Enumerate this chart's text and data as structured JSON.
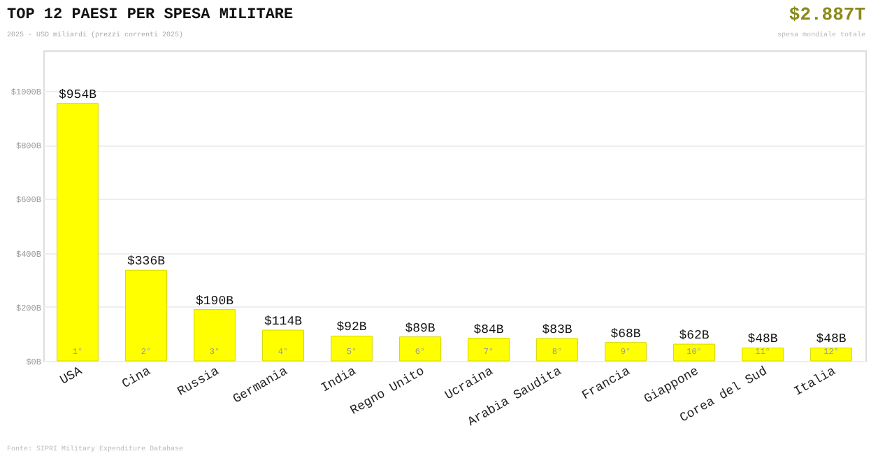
{
  "chart_data": {
    "type": "bar",
    "title": "TOP 12 PAESI PER SPESA MILITARE",
    "subtitle": "2025  ·  USD miliardi (prezzi correnti 2025)",
    "categories": [
      "USA",
      "Cina",
      "Russia",
      "Germania",
      "India",
      "Regno Unito",
      "Ucraina",
      "Arabia Saudita",
      "Francia",
      "Giappone",
      "Corea del Sud",
      "Italia"
    ],
    "values": [
      954,
      336,
      190,
      114,
      92,
      89,
      84,
      83,
      68,
      62,
      48,
      48
    ],
    "value_labels": [
      "$954B",
      "$336B",
      "$190B",
      "$114B",
      "$92B",
      "$89B",
      "$84B",
      "$83B",
      "$68B",
      "$62B",
      "$48B",
      "$48B"
    ],
    "color": "#ffff00",
    "ylim": [
      0,
      1150
    ],
    "yticks": [
      {
        "value": 0,
        "label": "$0B"
      },
      {
        "value": 200,
        "label": "$200B"
      },
      {
        "value": 400,
        "label": "$400B"
      },
      {
        "value": 600,
        "label": "$600B"
      },
      {
        "value": 800,
        "label": "$800B"
      },
      {
        "value": 1000,
        "label": "$1000B"
      }
    ],
    "grid": "y",
    "annotations": [
      "1°",
      "2°",
      "3°",
      "4°",
      "5°",
      "6°",
      "7°",
      "8°",
      "9°",
      "10°",
      "11°",
      "12°",
      "$2.887T",
      "spesa mondiale totale",
      "Fonte: SIPRI Military Expenditure Database"
    ]
  }
}
